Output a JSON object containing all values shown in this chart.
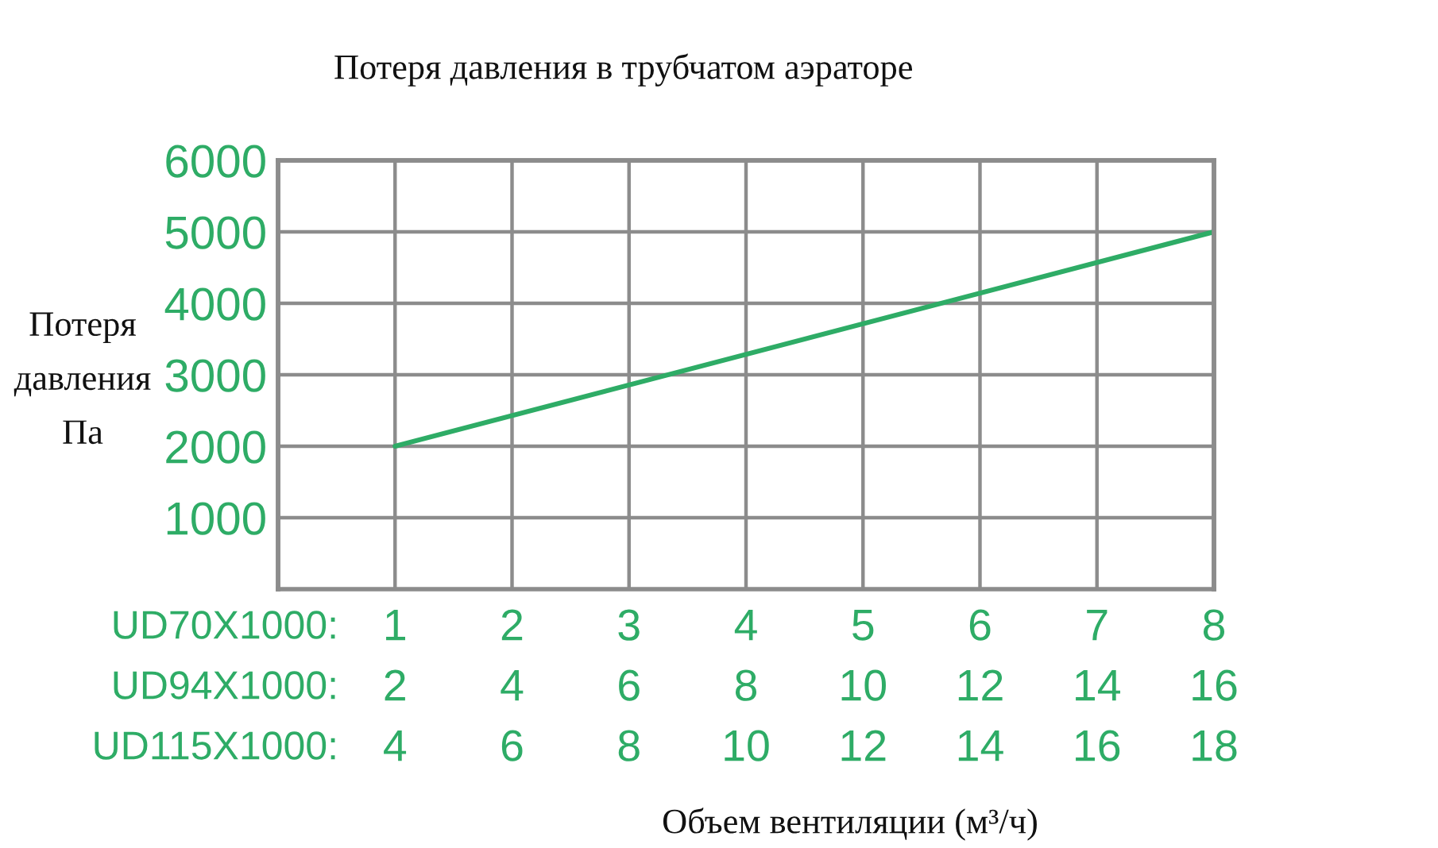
{
  "chart_data": {
    "type": "line",
    "title": "Потеря давления в трубчатом аэраторе",
    "ylabel": "Потеря давления Па",
    "xlabel": "UD70X1000:",
    "x2label": "UD94X1000:",
    "annotations": [
      "UD115X1000:",
      "4",
      "6",
      "8",
      "10",
      "12",
      "14",
      "16",
      "18",
      "Объем вентиляции (м³/ч)"
    ],
    "x": [
      1,
      8
    ],
    "series": [
      {
        "color": "#2eac66",
        "values": [
          2000,
          5000
        ]
      }
    ],
    "xlim": [
      0,
      8
    ],
    "xticks": [
      1,
      2,
      3,
      4,
      5,
      6,
      7,
      8
    ],
    "x2lim": [
      0,
      16
    ],
    "x2ticks": [
      2,
      4,
      6,
      8,
      10,
      12,
      14,
      16
    ],
    "ylim": [
      0,
      6000
    ],
    "yticks": [
      1000,
      2000,
      3000,
      4000,
      5000,
      6000
    ],
    "grid": true
  }
}
